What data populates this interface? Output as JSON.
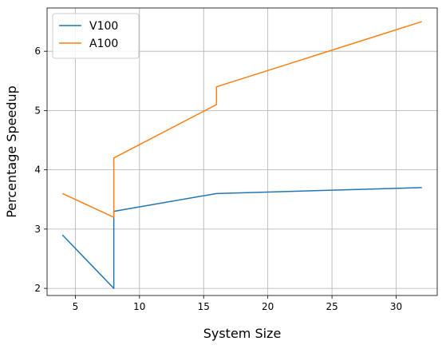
{
  "chart_data": {
    "type": "line",
    "title": "",
    "xlabel": "System Size",
    "ylabel": "Percentage Speedup",
    "xlim": [
      2.8,
      33.2
    ],
    "ylim": [
      1.88,
      6.73
    ],
    "xticks": [
      5,
      10,
      15,
      20,
      25,
      30
    ],
    "yticks": [
      2,
      3,
      4,
      5,
      6
    ],
    "grid": true,
    "legend_position": "top-left",
    "series": [
      {
        "name": "V100",
        "color": "#1f77b4",
        "points": [
          [
            4,
            2.9
          ],
          [
            8,
            2.0
          ],
          [
            8,
            3.3
          ],
          [
            16,
            3.6
          ],
          [
            32,
            3.7
          ]
        ]
      },
      {
        "name": "A100",
        "color": "#ff7f0e",
        "points": [
          [
            4,
            3.6
          ],
          [
            8,
            3.2
          ],
          [
            8,
            4.2
          ],
          [
            16,
            5.1
          ],
          [
            16,
            5.4
          ],
          [
            32,
            6.5
          ]
        ]
      }
    ]
  }
}
